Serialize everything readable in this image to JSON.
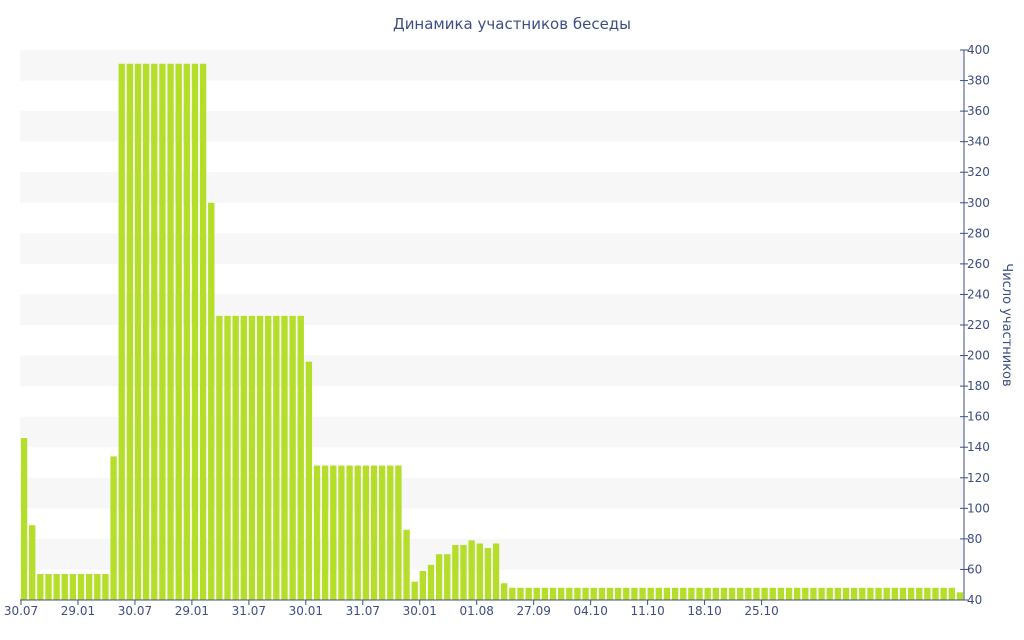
{
  "colors": {
    "bar": "#b5de2b",
    "text": "#3d4e84",
    "band": "#f7f7f7",
    "axis": "#3d4e84"
  },
  "chart_data": {
    "type": "bar",
    "title": "Динамика участников беседы",
    "xlabel": "",
    "ylabel": "Число участников",
    "ylim": [
      40,
      400
    ],
    "ytick_step": 20,
    "y_axis_side": "right",
    "grid": "alternating horizontal bands",
    "legend": "none",
    "x_tick_labels": [
      {
        "label": "30.07",
        "at_bar": 0
      },
      {
        "label": "29.01",
        "at_bar": 7
      },
      {
        "label": "30.07",
        "at_bar": 14
      },
      {
        "label": "29.01",
        "at_bar": 21
      },
      {
        "label": "31.07",
        "at_bar": 28
      },
      {
        "label": "30.01",
        "at_bar": 35
      },
      {
        "label": "31.07",
        "at_bar": 42
      },
      {
        "label": "30.01",
        "at_bar": 49
      },
      {
        "label": "01.08",
        "at_bar": 56
      },
      {
        "label": "27.09",
        "at_bar": 63
      },
      {
        "label": "04.10",
        "at_bar": 70
      },
      {
        "label": "11.10",
        "at_bar": 77
      },
      {
        "label": "18.10",
        "at_bar": 84
      },
      {
        "label": "25.10",
        "at_bar": 91
      }
    ],
    "values": [
      146,
      89,
      57,
      57,
      57,
      57,
      57,
      57,
      57,
      57,
      57,
      134,
      391,
      391,
      391,
      391,
      391,
      391,
      391,
      391,
      391,
      391,
      391,
      300,
      226,
      226,
      226,
      226,
      226,
      226,
      226,
      226,
      226,
      226,
      226,
      196,
      128,
      128,
      128,
      128,
      128,
      128,
      128,
      128,
      128,
      128,
      128,
      86,
      52,
      59,
      63,
      70,
      70,
      76,
      76,
      79,
      77,
      74,
      77,
      51,
      48,
      48,
      48,
      48,
      48,
      48,
      48,
      48,
      48,
      48,
      48,
      48,
      48,
      48,
      48,
      48,
      48,
      48,
      48,
      48,
      48,
      48,
      48,
      48,
      48,
      48,
      48,
      48,
      48,
      48,
      48,
      48,
      48,
      48,
      48,
      48,
      48,
      48,
      48,
      48,
      48,
      48,
      48,
      48,
      48,
      48,
      48,
      48,
      48,
      48,
      48,
      48,
      48,
      48,
      48,
      45
    ]
  }
}
